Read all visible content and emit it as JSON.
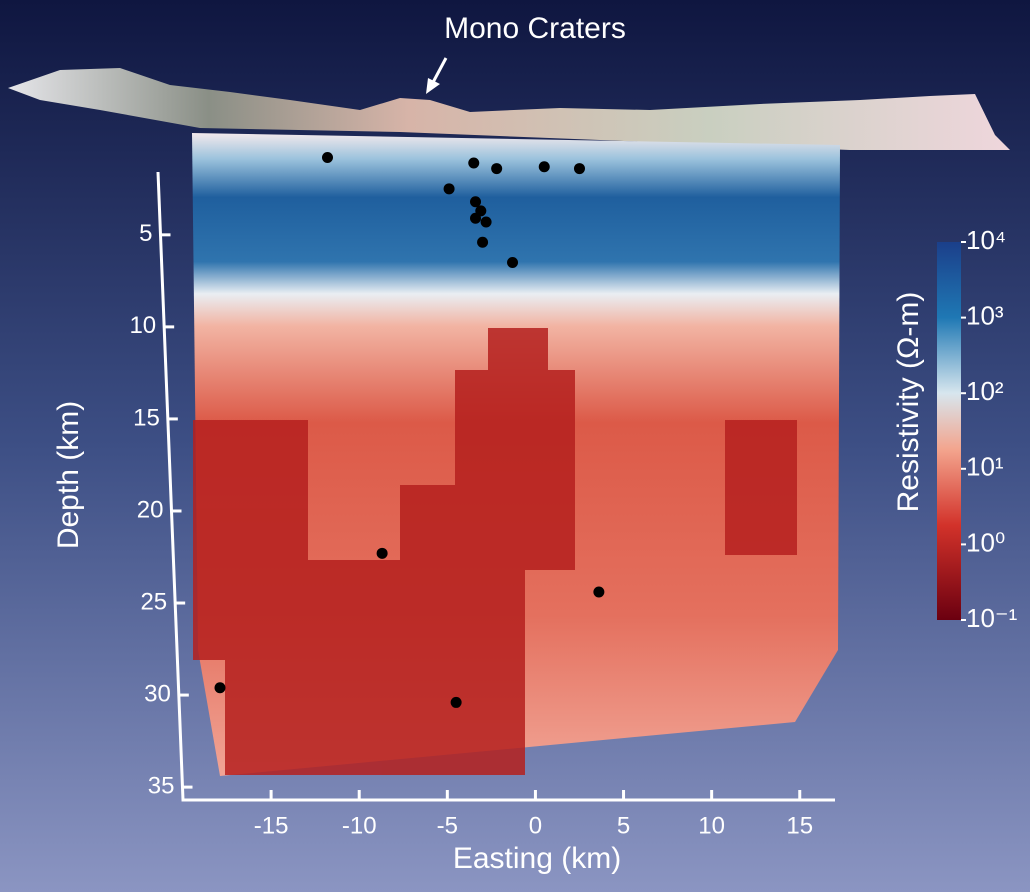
{
  "chart_data": {
    "type": "scatter",
    "annotation": "Mono Craters",
    "xlabel": "Easting (km)",
    "ylabel": "Depth (km)",
    "x": [
      -11.8,
      -3.5,
      -2.2,
      0.5,
      2.5,
      -4.9,
      -3.4,
      -3.1,
      -3.4,
      -2.8,
      -3.0,
      -1.3,
      -8.7,
      3.6,
      -4.5,
      -17.9
    ],
    "values": [
      0.8,
      1.1,
      1.4,
      1.3,
      1.4,
      2.5,
      3.2,
      3.7,
      4.1,
      4.3,
      5.4,
      6.5,
      22.3,
      24.4,
      30.4,
      29.6
    ],
    "color": "#000000",
    "xlim": [
      -20,
      17
    ],
    "xticks": [
      -15,
      -10,
      -5,
      0,
      5,
      10,
      15
    ],
    "ylim": [
      0.5,
      35.7
    ],
    "yticks": [
      5,
      10,
      15,
      20,
      25,
      30,
      35
    ],
    "y_inverted": true,
    "colorbar": {
      "label": "Resistivity (Ω-m)",
      "log": true,
      "lim": [
        0.1,
        10000
      ],
      "ticks": [
        {
          "value": 0.1,
          "label": "10⁻¹"
        },
        {
          "value": 1,
          "label": "10⁰"
        },
        {
          "value": 10,
          "label": "10¹"
        },
        {
          "value": 100,
          "label": "10²"
        },
        {
          "value": 1000,
          "label": "10³"
        },
        {
          "value": 10000,
          "label": "10⁴"
        }
      ]
    }
  }
}
